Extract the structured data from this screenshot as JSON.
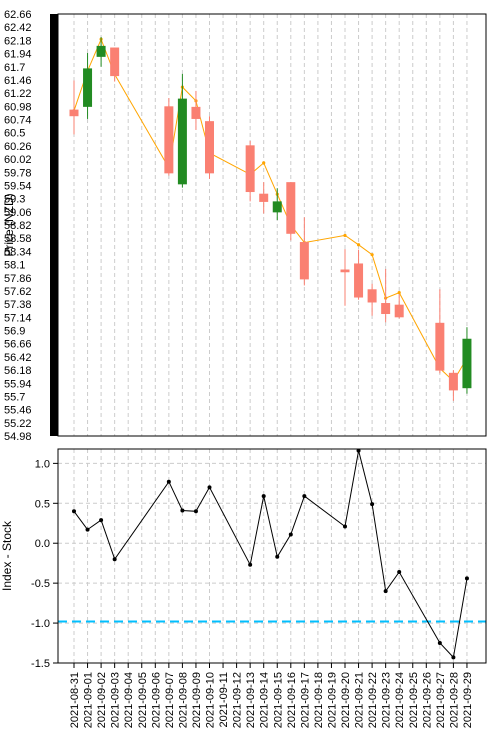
{
  "chart_data": [
    {
      "type": "candlestick",
      "ylabel": "Price (NZD)",
      "ylim": [
        54.98,
        62.66
      ],
      "yticks": [
        "62.66",
        "62.42",
        "62.18",
        "61.94",
        "61.7",
        "61.46",
        "61.22",
        "60.98",
        "60.74",
        "60.5",
        "60.26",
        "60.02",
        "59.78",
        "59.54",
        "59.3",
        "59.06",
        "58.82",
        "58.58",
        "58.34",
        "58.1",
        "57.86",
        "57.62",
        "57.38",
        "57.14",
        "56.9",
        "56.66",
        "56.42",
        "56.18",
        "55.94",
        "55.7",
        "55.46",
        "55.22",
        "54.98"
      ],
      "grid": true,
      "colors": {
        "up": "#228b22",
        "down": "#fa8072",
        "line": "#ffa500"
      },
      "candles": [
        {
          "date": "2021-08-31",
          "open": 60.92,
          "close": 60.8,
          "high": 61.45,
          "low": 60.47
        },
        {
          "date": "2021-09-01",
          "open": 60.97,
          "close": 61.67,
          "high": 61.95,
          "low": 60.75
        },
        {
          "date": "2021-09-02",
          "open": 61.88,
          "close": 62.08,
          "high": 62.24,
          "low": 61.7
        },
        {
          "date": "2021-09-03",
          "open": 62.05,
          "close": 61.53,
          "high": 62.05,
          "low": 61.43
        },
        {
          "date": "2021-09-07",
          "open": 60.98,
          "close": 59.76,
          "high": 61.13,
          "low": 59.72
        },
        {
          "date": "2021-09-08",
          "open": 59.56,
          "close": 61.12,
          "high": 61.57,
          "low": 59.5
        },
        {
          "date": "2021-09-09",
          "open": 60.97,
          "close": 60.75,
          "high": 61.26,
          "low": 60.55
        },
        {
          "date": "2021-09-10",
          "open": 60.71,
          "close": 59.76,
          "high": 60.8,
          "low": 59.66
        },
        {
          "date": "2021-09-13",
          "open": 60.27,
          "close": 59.42,
          "high": 60.35,
          "low": 59.25
        },
        {
          "date": "2021-09-14",
          "open": 59.39,
          "close": 59.24,
          "high": 59.6,
          "low": 59.03
        },
        {
          "date": "2021-09-15",
          "open": 59.05,
          "close": 59.25,
          "high": 59.49,
          "low": 58.91
        },
        {
          "date": "2021-09-16",
          "open": 59.6,
          "close": 58.66,
          "high": 59.6,
          "low": 58.54
        },
        {
          "date": "2021-09-17",
          "open": 58.51,
          "close": 57.83,
          "high": 58.96,
          "low": 57.72
        },
        {
          "date": "2021-09-20",
          "open": 58.01,
          "close": 57.96,
          "high": 58.38,
          "low": 57.35
        },
        {
          "date": "2021-09-21",
          "open": 58.12,
          "close": 57.5,
          "high": 58.37,
          "low": 57.46
        },
        {
          "date": "2021-09-22",
          "open": 57.65,
          "close": 57.41,
          "high": 57.75,
          "low": 57.17
        },
        {
          "date": "2021-09-23",
          "open": 57.4,
          "close": 57.2,
          "high": 58.02,
          "low": 57.05
        },
        {
          "date": "2021-09-24",
          "open": 57.37,
          "close": 57.14,
          "high": 57.56,
          "low": 57.12
        },
        {
          "date": "2021-09-27",
          "open": 57.04,
          "close": 56.17,
          "high": 57.65,
          "low": 56.12
        },
        {
          "date": "2021-09-28",
          "open": 56.13,
          "close": 55.81,
          "high": 56.18,
          "low": 55.62
        },
        {
          "date": "2021-09-29",
          "open": 55.85,
          "close": 56.75,
          "high": 56.96,
          "low": 55.75
        }
      ],
      "line": {
        "dates": [
          "2021-08-31",
          "2021-09-01",
          "2021-09-02",
          "2021-09-03",
          "2021-09-07",
          "2021-09-08",
          "2021-09-09",
          "2021-09-10",
          "2021-09-13",
          "2021-09-14",
          "2021-09-15",
          "2021-09-16",
          "2021-09-17",
          "2021-09-20",
          "2021-09-21",
          "2021-09-22",
          "2021-09-23",
          "2021-09-24",
          "2021-09-27",
          "2021-09-28",
          "2021-09-29"
        ],
        "values": [
          60.9,
          61.62,
          62.2,
          61.56,
          59.86,
          61.33,
          61.08,
          60.13,
          59.74,
          59.95,
          59.38,
          58.82,
          58.5,
          58.63,
          58.46,
          58.28,
          57.49,
          57.59,
          56.21,
          55.98,
          56.4
        ]
      }
    },
    {
      "type": "line",
      "ylabel": "Index - Stock",
      "ylim": [
        -1.5,
        1.18
      ],
      "yticks": [
        "1.0",
        "0.5",
        "0.0",
        "-0.5",
        "-1.0",
        "-1.5"
      ],
      "grid": true,
      "colors": {
        "line": "#000000",
        "ref": "#00bfff"
      },
      "x": [
        "2021-08-31",
        "2021-09-01",
        "2021-09-02",
        "2021-09-03",
        "2021-09-07",
        "2021-09-08",
        "2021-09-09",
        "2021-09-10",
        "2021-09-13",
        "2021-09-14",
        "2021-09-15",
        "2021-09-16",
        "2021-09-17",
        "2021-09-20",
        "2021-09-21",
        "2021-09-22",
        "2021-09-23",
        "2021-09-24",
        "2021-09-27",
        "2021-09-28",
        "2021-09-29"
      ],
      "y": [
        0.4,
        0.17,
        0.29,
        -0.2,
        0.77,
        0.41,
        0.4,
        0.7,
        -0.27,
        0.59,
        -0.17,
        0.11,
        0.59,
        0.21,
        1.16,
        0.49,
        -0.6,
        -0.36,
        -1.25,
        -1.43,
        -0.44
      ],
      "reference_line": -0.98
    }
  ],
  "x_axis": {
    "ticks": [
      "2021-08-31",
      "2021-09-01",
      "2021-09-02",
      "2021-09-03",
      "2021-09-04",
      "2021-09-05",
      "2021-09-06",
      "2021-09-07",
      "2021-09-08",
      "2021-09-09",
      "2021-09-10",
      "2021-09-11",
      "2021-09-12",
      "2021-09-13",
      "2021-09-14",
      "2021-09-15",
      "2021-09-16",
      "2021-09-17",
      "2021-09-18",
      "2021-09-19",
      "2021-09-20",
      "2021-09-21",
      "2021-09-22",
      "2021-09-23",
      "2021-09-24",
      "2021-09-25",
      "2021-09-26",
      "2021-09-27",
      "2021-09-28",
      "2021-09-29"
    ]
  }
}
